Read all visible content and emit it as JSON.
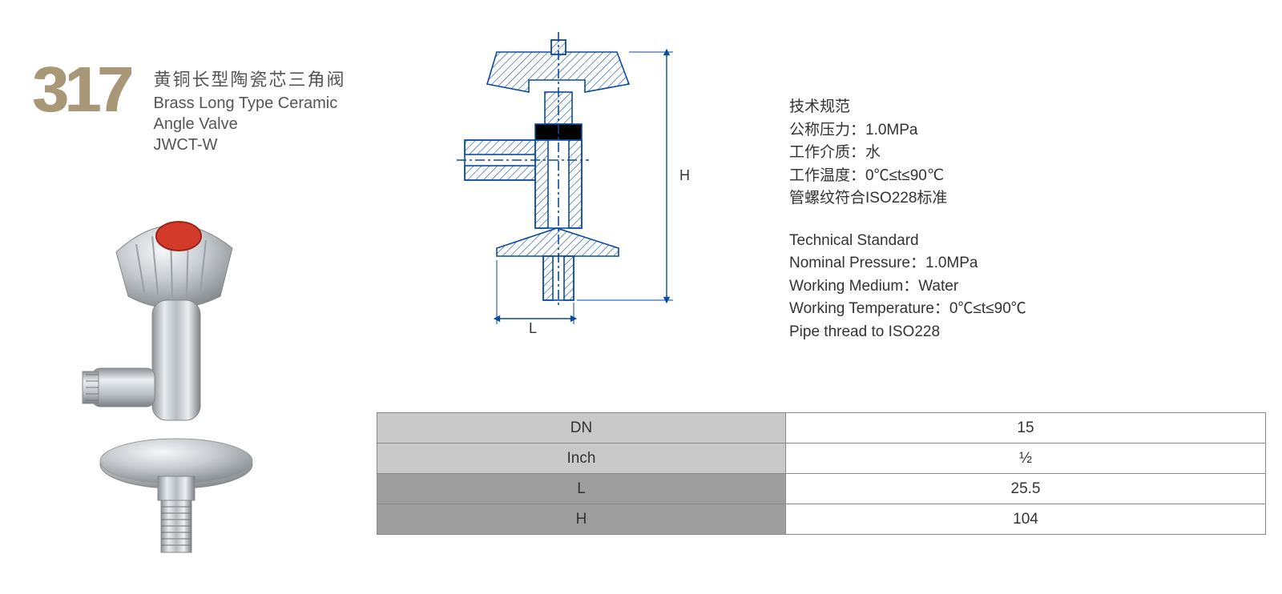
{
  "product": {
    "number": "317",
    "title_cn": "黄铜长型陶瓷芯三角阀",
    "title_en_line1": "Brass Long Type Ceramic",
    "title_en_line2": "Angle Valve",
    "model": "JWCT-W"
  },
  "drawing": {
    "dim_L": "L",
    "dim_H": "H",
    "stroke": "#0a4aa0",
    "hatch": "#0a4aa0"
  },
  "specs_cn": {
    "heading": "技术规范",
    "pressure": "公称压力：1.0MPa",
    "medium": "工作介质：水",
    "temperature": "工作温度：0℃≤t≤90℃",
    "thread": "管螺纹符合ISO228标准"
  },
  "specs_en": {
    "heading": "Technical Standard",
    "pressure": "Nominal Pressure：1.0MPa",
    "medium": "Working Medium：Water",
    "temperature": "Working Temperature：0℃≤t≤90℃",
    "thread": "Pipe thread to ISO228"
  },
  "table": {
    "rows": [
      {
        "label": "DN",
        "value": "15",
        "shade": "light"
      },
      {
        "label": "Inch",
        "value": "½",
        "shade": "light"
      },
      {
        "label": "L",
        "value": "25.5",
        "shade": "dark"
      },
      {
        "label": "H",
        "value": "104",
        "shade": "dark"
      }
    ],
    "colors": {
      "light_bg": "#c9c9c9",
      "dark_bg": "#9e9e9e",
      "value_bg": "#ffffff",
      "border": "#888888",
      "fontsize": 19
    }
  },
  "photo": {
    "body_color": "#c8ccd0",
    "highlight": "#f5f7f8",
    "shadow": "#7a7f85",
    "indicator": "#d43a2a"
  }
}
